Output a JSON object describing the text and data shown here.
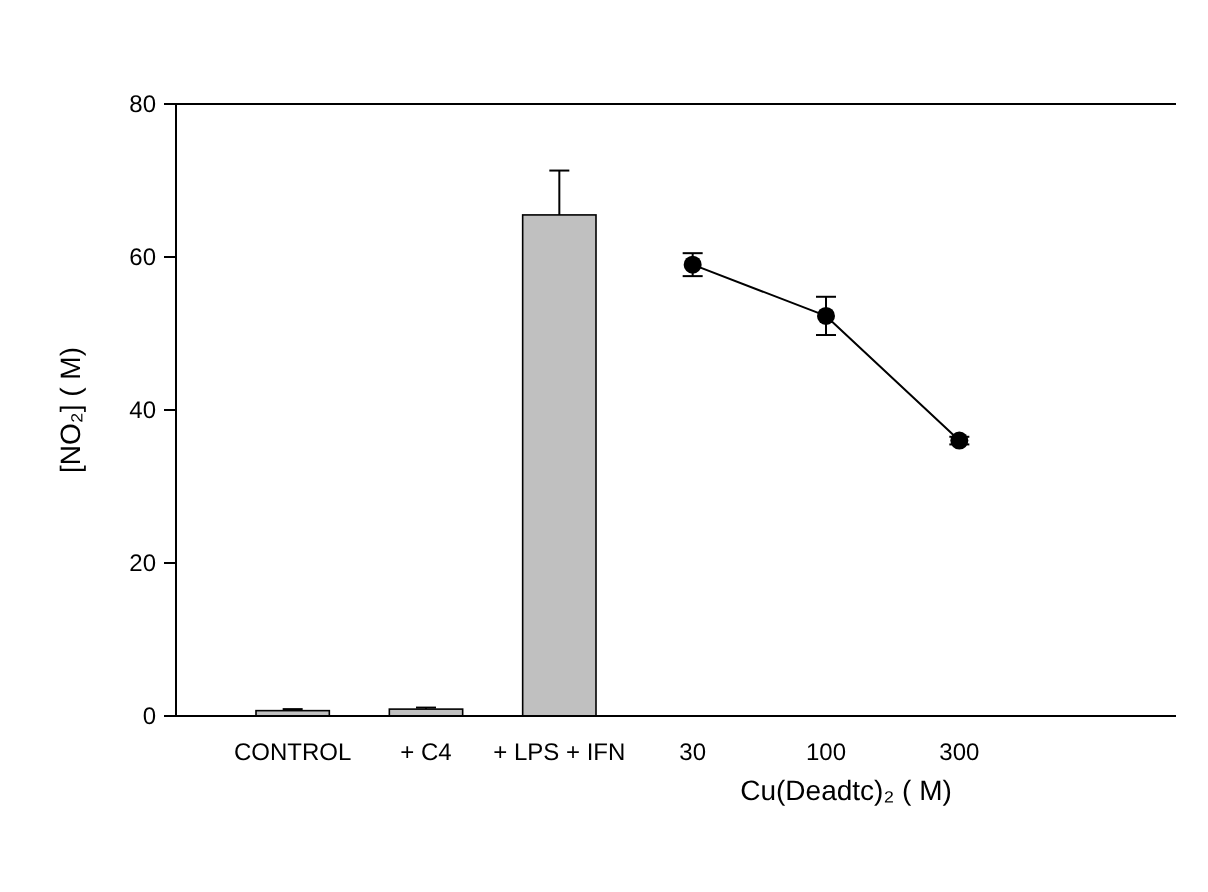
{
  "chart_data": {
    "type": "bar",
    "categories": [
      "CONTROL",
      "+ C4",
      "+ LPS + IFN",
      "30",
      "100",
      "300"
    ],
    "xlabel": "Cu(Deadtc)₂ ( M)",
    "ylabel": "[NO₂] ( M)",
    "ylim": [
      0,
      80
    ],
    "yticks": [
      0,
      20,
      40,
      60,
      80
    ],
    "grid": false,
    "series": [
      {
        "color": "#c0c0c0",
        "values": [
          0.7,
          0.9,
          65.5,
          null,
          null,
          null
        ],
        "errors": [
          0.2,
          0.2,
          5.8,
          null,
          null,
          null
        ]
      },
      {
        "type": "line",
        "color": "#000000",
        "marker": "circle",
        "values": [
          null,
          null,
          null,
          59,
          52.3,
          36
        ],
        "errors": [
          null,
          null,
          null,
          1.5,
          2.5,
          0.5
        ]
      }
    ]
  }
}
